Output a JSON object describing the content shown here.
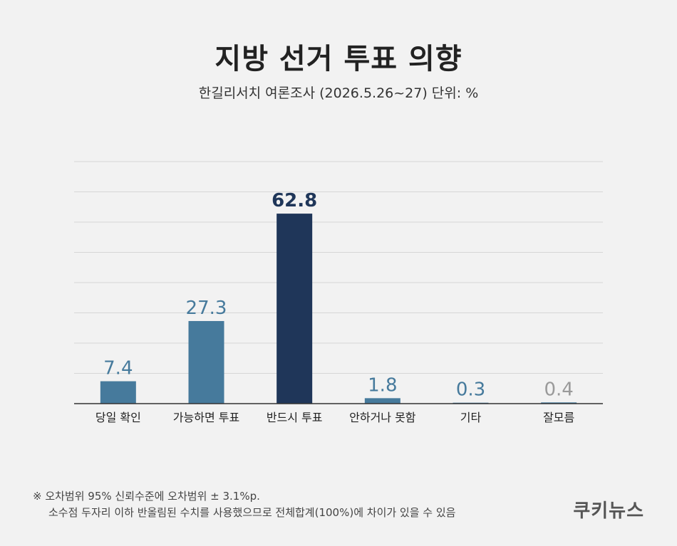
{
  "header": {
    "title": "지방 선거 투표 의향",
    "subtitle": "한길리서치 여론조사 (2026.5.26~27) 단위: %"
  },
  "footnote": {
    "line1": "※ 오차범위 95% 신뢰수준에 오차범위 ± 3.1%p.",
    "line2": "소수점 두자리 이하 반올림된 수치를 사용했으므로 전체합계(100%)에 차이가 있을 수 있음"
  },
  "logo": "쿠키뉴스",
  "colors": {
    "bar": "#467a9c",
    "highlight": "#1f3659",
    "muted": "#9a9a9a",
    "grid": "#d6d6d6",
    "axis": "#333333"
  },
  "chart_data": {
    "type": "bar",
    "title": "지방 선거 투표 의향",
    "subtitle": "한길리서치 여론조사 (2026.5.26~27) 단위: %",
    "categories": [
      "당일 확인",
      "가능하면 투표",
      "반드시 투표",
      "안하거나 못함",
      "기타",
      "잘모름"
    ],
    "values": [
      7.4,
      27.3,
      62.8,
      1.8,
      0.3,
      0.4
    ],
    "value_labels": [
      "7.4",
      "27.3",
      "62.8",
      "1.8",
      "0.3",
      "0.4"
    ],
    "highlight_index": 2,
    "muted_index": 5,
    "ylim": [
      0,
      80
    ],
    "grid": true,
    "xlabel": "",
    "ylabel": ""
  }
}
